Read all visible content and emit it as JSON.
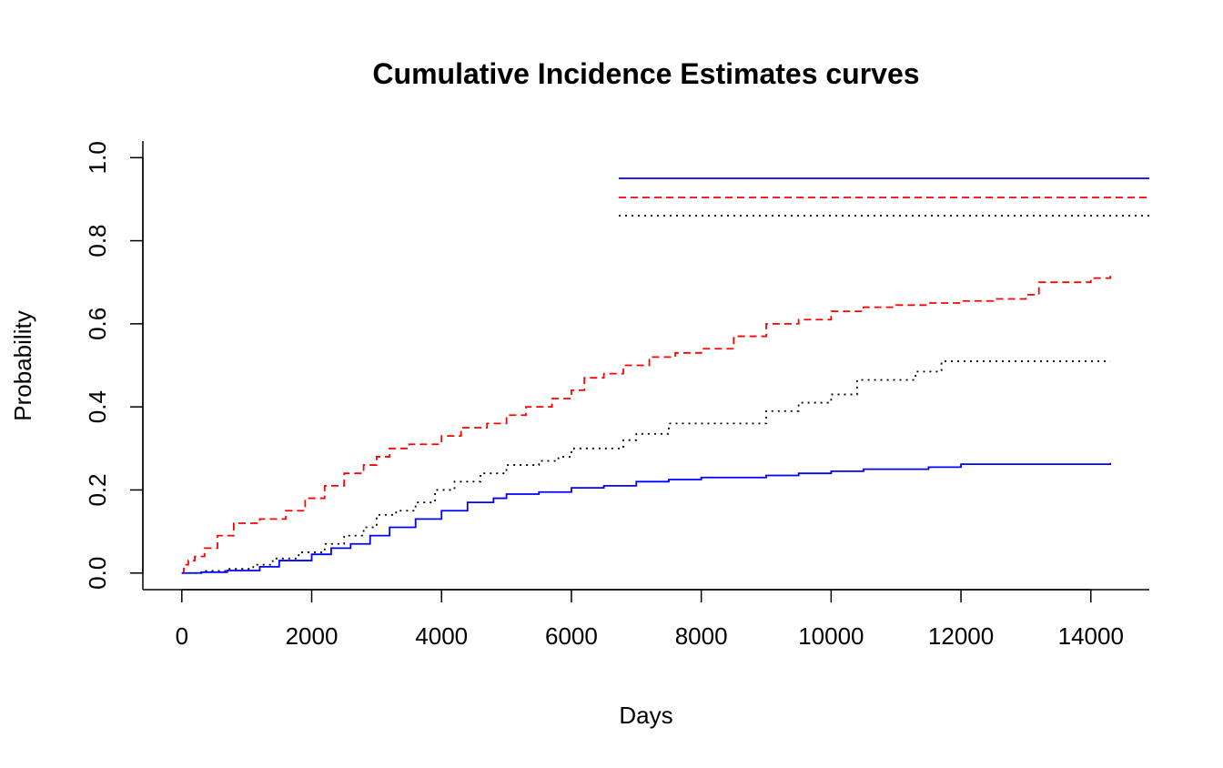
{
  "chart_data": {
    "type": "line",
    "title": "Cumulative Incidence Estimates curves",
    "xlabel": "Days",
    "ylabel": "Probability",
    "xlim": [
      -600,
      14900
    ],
    "ylim": [
      -0.04,
      1.04
    ],
    "x_ticks": [
      0,
      2000,
      4000,
      6000,
      8000,
      10000,
      12000,
      14000
    ],
    "x_tick_labels": [
      "0",
      "2000",
      "4000",
      "6000",
      "8000",
      "10000",
      "12000",
      "14000"
    ],
    "y_ticks": [
      0.0,
      0.2,
      0.4,
      0.6,
      0.8,
      1.0
    ],
    "y_tick_labels": [
      "0.0",
      "0.2",
      "0.4",
      "0.6",
      "0.8",
      "1.0"
    ],
    "step": true,
    "grid": false,
    "legend": {
      "position": "top-right",
      "labels_shown": false,
      "entries": [
        {
          "color": "#0000ff",
          "dash": "solid"
        },
        {
          "color": "#ff0000",
          "dash": "dashed"
        },
        {
          "color": "#000000",
          "dash": "dotted"
        }
      ]
    },
    "series": [
      {
        "color": "#ff0000",
        "dash": "dashed",
        "x": [
          0,
          30,
          100,
          200,
          350,
          550,
          800,
          1200,
          1600,
          1900,
          2200,
          2500,
          2800,
          3000,
          3200,
          3500,
          4000,
          4300,
          4700,
          5000,
          5300,
          5700,
          6000,
          6200,
          6500,
          6800,
          7200,
          7600,
          8000,
          8500,
          9000,
          9500,
          10000,
          10500,
          11000,
          11500,
          12000,
          12500,
          13000,
          13200,
          14000,
          14300
        ],
        "y": [
          0.0,
          0.02,
          0.03,
          0.04,
          0.06,
          0.09,
          0.12,
          0.13,
          0.15,
          0.18,
          0.21,
          0.24,
          0.26,
          0.28,
          0.3,
          0.31,
          0.33,
          0.35,
          0.36,
          0.38,
          0.4,
          0.42,
          0.44,
          0.47,
          0.48,
          0.5,
          0.52,
          0.53,
          0.54,
          0.57,
          0.6,
          0.61,
          0.63,
          0.64,
          0.645,
          0.65,
          0.655,
          0.66,
          0.67,
          0.7,
          0.71,
          0.72
        ]
      },
      {
        "color": "#000000",
        "dash": "dotted",
        "x": [
          0,
          300,
          700,
          1100,
          1400,
          1800,
          2200,
          2500,
          2800,
          3000,
          3300,
          3600,
          3900,
          4200,
          4600,
          5000,
          5500,
          5800,
          6000,
          6800,
          7000,
          7500,
          9000,
          9500,
          10000,
          10400,
          11300,
          11700,
          14300
        ],
        "y": [
          0.0,
          0.005,
          0.01,
          0.02,
          0.035,
          0.05,
          0.07,
          0.09,
          0.11,
          0.14,
          0.15,
          0.17,
          0.2,
          0.22,
          0.24,
          0.26,
          0.27,
          0.28,
          0.3,
          0.32,
          0.335,
          0.36,
          0.39,
          0.41,
          0.43,
          0.465,
          0.485,
          0.51,
          0.51
        ]
      },
      {
        "color": "#0000ff",
        "dash": "solid",
        "x": [
          0,
          300,
          700,
          1200,
          1500,
          2000,
          2300,
          2600,
          2900,
          3200,
          3600,
          4000,
          4400,
          4800,
          5000,
          5500,
          6000,
          6500,
          7000,
          7500,
          8000,
          9000,
          9500,
          10000,
          10500,
          11500,
          12000,
          14300
        ],
        "y": [
          0.0,
          0.002,
          0.006,
          0.015,
          0.03,
          0.045,
          0.06,
          0.07,
          0.09,
          0.11,
          0.13,
          0.15,
          0.17,
          0.18,
          0.19,
          0.195,
          0.205,
          0.21,
          0.22,
          0.225,
          0.23,
          0.235,
          0.24,
          0.245,
          0.25,
          0.255,
          0.262,
          0.265
        ]
      }
    ]
  }
}
